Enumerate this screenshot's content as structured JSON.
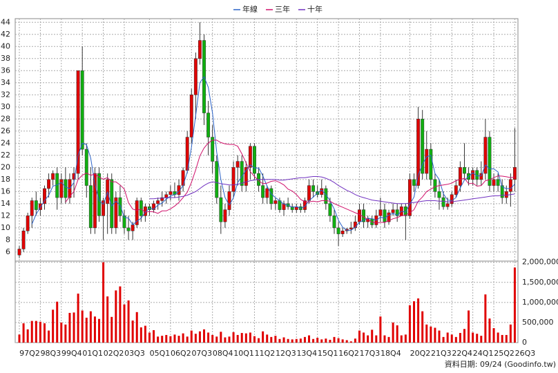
{
  "chart_data": {
    "type": "candlestick",
    "categories": [
      "97Q2",
      null,
      null,
      null,
      null,
      "98Q3",
      null,
      null,
      null,
      null,
      "99Q4",
      null,
      null,
      null,
      null,
      "01Q1",
      null,
      null,
      null,
      null,
      "02Q2",
      null,
      null,
      null,
      null,
      "03Q3",
      null,
      null,
      null,
      null,
      null,
      "05Q1",
      null,
      null,
      null,
      null,
      "06Q2",
      null,
      null,
      null,
      null,
      "07Q3",
      null,
      null,
      null,
      null,
      "08Q4",
      null,
      null,
      null,
      null,
      "10Q1",
      null,
      null,
      null,
      null,
      "11Q2",
      null,
      null,
      null,
      null,
      "12Q3",
      null,
      null,
      null,
      null,
      "13Q4",
      null,
      null,
      null,
      null,
      "15Q1",
      null,
      null,
      null,
      null,
      "16Q2",
      null,
      null,
      null,
      null,
      "17Q3",
      null,
      null,
      null,
      null,
      "18Q4",
      null,
      null,
      null,
      null,
      null,
      null,
      "20Q2",
      null,
      null,
      null,
      null,
      "21Q3",
      null,
      null,
      null,
      null,
      "22Q4",
      null,
      null,
      null,
      null,
      "24Q1",
      null,
      null,
      null,
      null,
      "25Q2",
      null,
      null,
      null,
      null,
      "26Q3"
    ],
    "open": [
      5.5,
      6.5,
      9.5,
      12,
      14.5,
      13,
      14,
      16.5,
      18,
      19,
      15,
      18,
      15,
      18,
      19,
      36,
      23,
      17,
      10,
      19,
      12,
      14,
      18,
      10,
      15,
      12,
      10,
      9.5,
      10.5,
      14.5,
      12,
      13.5,
      13,
      14,
      14.5,
      15,
      15.5,
      16,
      15.5,
      17,
      19.5,
      25,
      32,
      38,
      41,
      29,
      25,
      21,
      15,
      11,
      13,
      16,
      20,
      21,
      17,
      20,
      23.5,
      19,
      17,
      15,
      16.5,
      14,
      14.5,
      13,
      14,
      13.5,
      13,
      13.5,
      13,
      14.5,
      17,
      16,
      15.5,
      16.5,
      14,
      12,
      10,
      9,
      9.5,
      9.8,
      10,
      11,
      13,
      11,
      11.5,
      10.5,
      12,
      13,
      11,
      12.5,
      13,
      12,
      13.5,
      12,
      18,
      17,
      28,
      19,
      23,
      18,
      16,
      15,
      13.5,
      14,
      15.5,
      17,
      20,
      19,
      18,
      19.5,
      18,
      19,
      25,
      17,
      18,
      17,
      15,
      16,
      18
    ],
    "high": [
      7,
      10,
      12.5,
      15,
      16,
      15,
      17,
      19,
      19.5,
      20,
      19,
      20,
      19,
      20,
      36,
      40,
      24,
      20,
      20,
      20,
      15,
      19,
      19,
      16,
      17,
      13,
      12,
      11,
      15,
      15,
      14,
      14,
      14.5,
      15,
      16,
      16,
      17,
      17.5,
      18,
      20,
      26,
      33,
      39,
      44,
      42,
      31,
      27,
      22,
      17,
      14,
      17,
      21,
      22,
      22,
      21,
      24,
      24,
      20,
      19,
      17,
      17,
      15,
      15,
      14.5,
      15,
      14,
      14,
      14,
      15,
      18,
      18,
      17,
      18,
      17,
      15,
      13,
      11,
      10,
      10,
      11,
      12,
      14,
      14,
      12,
      12,
      13,
      15,
      14,
      13,
      14,
      14,
      14,
      14,
      19,
      19,
      30,
      29.5,
      26,
      24,
      19,
      18,
      16,
      15,
      16,
      18,
      21,
      24,
      20,
      20,
      20,
      21,
      28,
      26,
      19,
      19,
      18,
      17,
      19,
      26.5
    ],
    "low": [
      5,
      6,
      9,
      10,
      12,
      12,
      13,
      15,
      17,
      13,
      14,
      14,
      14,
      15,
      18,
      22,
      15,
      9,
      9,
      11,
      8,
      9,
      9,
      9,
      11,
      9,
      8,
      8,
      10,
      11,
      11,
      12,
      12.5,
      13,
      13.5,
      14,
      14.5,
      15,
      14.5,
      16,
      19,
      24,
      28,
      37,
      27,
      22,
      19,
      14,
      9,
      10,
      12,
      15,
      17,
      16,
      16,
      18,
      18,
      16,
      14,
      14,
      13,
      13,
      12.5,
      12,
      13,
      12.5,
      12.5,
      12.5,
      12.5,
      14,
      15,
      15,
      15,
      13,
      11,
      9,
      7,
      8.5,
      9,
      9,
      9.5,
      10.5,
      10,
      10,
      10,
      10,
      11,
      10,
      10.5,
      12,
      11,
      12,
      8,
      11.5,
      16,
      16.5,
      18,
      18,
      17,
      15,
      13,
      13,
      13,
      13.5,
      15,
      16,
      18,
      17,
      17,
      17,
      17,
      18,
      16,
      16,
      16,
      14,
      14,
      13.5,
      16
    ],
    "close": [
      6.5,
      9.5,
      12,
      14.5,
      13,
      14,
      16.5,
      18,
      19,
      15,
      18,
      15,
      18,
      19,
      36,
      23,
      17,
      10,
      19,
      12,
      14.5,
      18,
      10,
      15,
      12,
      10,
      9.5,
      10.5,
      14.5,
      12,
      13.5,
      13,
      14,
      14.5,
      15,
      15.5,
      16,
      15.5,
      17,
      19.5,
      25,
      32,
      38,
      41,
      29,
      25,
      21,
      15,
      11,
      13,
      16,
      20,
      21,
      17,
      20,
      23.5,
      19,
      17,
      15,
      16.5,
      14,
      14.5,
      13,
      14,
      13.5,
      13,
      13.5,
      13,
      14.5,
      17,
      16,
      15.5,
      16.5,
      14,
      12,
      10,
      9,
      9.5,
      9.8,
      10,
      11,
      13,
      11,
      11.5,
      10.5,
      12,
      13,
      11,
      12.5,
      13,
      12,
      13.5,
      12,
      18,
      17,
      28,
      19,
      23,
      18,
      16,
      15,
      13.5,
      14,
      15.5,
      17,
      20,
      19,
      18,
      19.5,
      18,
      19,
      25,
      17,
      18,
      17,
      15,
      16,
      18,
      20
    ],
    "volume": [
      200000,
      480000,
      330000,
      540000,
      540000,
      520000,
      480000,
      300000,
      820000,
      1020000,
      500000,
      450000,
      740000,
      750000,
      1220000,
      800000,
      620000,
      780000,
      650000,
      590000,
      2000000,
      1150000,
      640000,
      1300000,
      1400000,
      950000,
      1050000,
      550000,
      760000,
      380000,
      420000,
      250000,
      310000,
      150000,
      170000,
      190000,
      160000,
      200000,
      170000,
      230000,
      150000,
      300000,
      220000,
      280000,
      330000,
      250000,
      190000,
      150000,
      270000,
      130000,
      150000,
      260000,
      190000,
      240000,
      230000,
      250000,
      160000,
      110000,
      280000,
      200000,
      140000,
      170000,
      90000,
      130000,
      90000,
      80000,
      90000,
      100000,
      140000,
      180000,
      90000,
      120000,
      80000,
      100000,
      70000,
      140000,
      110000,
      80000,
      60000,
      30000,
      100000,
      300000,
      250000,
      180000,
      320000,
      180000,
      650000,
      180000,
      140000,
      500000,
      430000,
      180000,
      200000,
      930000,
      1030000,
      1100000,
      780000,
      450000,
      400000,
      370000,
      300000,
      140000,
      250000,
      200000,
      140000,
      240000,
      340000,
      800000,
      250000,
      220000,
      170000,
      1200000,
      600000,
      360000,
      250000,
      190000,
      190000,
      450000,
      1870000
    ],
    "series": [
      {
        "name": "年線",
        "color": "#2a62c9",
        "values": [
          null,
          null,
          null,
          10.6,
          12.25,
          13.4,
          14.5,
          15.4,
          16.9,
          17.1,
          17.5,
          16.75,
          16.5,
          17.5,
          22,
          24,
          23.75,
          21.5,
          17.25,
          14.5,
          13.9,
          15.9,
          13.6,
          14.4,
          13.75,
          11.75,
          11.6,
          10.5,
          11.1,
          11.6,
          12.6,
          13.25,
          13.1,
          13.75,
          14.1,
          14.75,
          15.25,
          15.5,
          16,
          17,
          19.25,
          23.4,
          28.6,
          34,
          35,
          33.25,
          29,
          22.5,
          18,
          15,
          13.75,
          15,
          17.5,
          18.5,
          19.5,
          20.4,
          19.9,
          19.9,
          18.6,
          16.9,
          15.6,
          15,
          14.5,
          13.9,
          13.75,
          13.4,
          13.5,
          13.25,
          13.5,
          14.5,
          15.1,
          15.75,
          16.25,
          15.5,
          14.5,
          13.1,
          11.25,
          10.1,
          9.6,
          9.6,
          10.1,
          10.95,
          11.25,
          11.6,
          11.5,
          11.25,
          11.75,
          11.6,
          12.1,
          12.4,
          12.1,
          12.75,
          12.6,
          13.9,
          15.1,
          18.75,
          20.5,
          21.75,
          22,
          19,
          18,
          15.6,
          14.6,
          14.5,
          15,
          16.6,
          17.9,
          18.5,
          19.1,
          18.6,
          18.6,
          20.4,
          19.75,
          19.75,
          19.25,
          16.75,
          16.5,
          16.5,
          17.25
        ]
      },
      {
        "name": "三年",
        "color": "#d0106a",
        "values": [
          null,
          null,
          null,
          null,
          null,
          null,
          null,
          null,
          null,
          null,
          null,
          14.25,
          15.2,
          16,
          18,
          18.7,
          19.05,
          18.7,
          18.9,
          18.4,
          18.05,
          18.3,
          17.6,
          17.6,
          17.1,
          16.4,
          14.15,
          13.1,
          12.9,
          13.1,
          12.6,
          12.7,
          12.65,
          12.4,
          12.8,
          12.8,
          13.15,
          13.6,
          14.2,
          15,
          15.9,
          17.55,
          19.6,
          21.9,
          23.2,
          24.05,
          24.5,
          24.5,
          24.1,
          23.9,
          23.8,
          23.8,
          23.5,
          22.25,
          20.75,
          19.3,
          18.5,
          17.8,
          17.3,
          17.4,
          17.7,
          17.8,
          17.5,
          17.1,
          16.4,
          16.1,
          15.5,
          14.7,
          14.3,
          14.3,
          14.4,
          14.3,
          14.5,
          14.5,
          14.4,
          14,
          13.7,
          13.4,
          13.1,
          12.8,
          12.5,
          12.2,
          11.8,
          11.4,
          10.95,
          10.8,
          10.9,
          10.9,
          11.2,
          11.5,
          11.7,
          12,
          12.1,
          12.5,
          13,
          14.4,
          15.1,
          16,
          16.4,
          16.8,
          17,
          17.1,
          17.2,
          17.4,
          17.8,
          18,
          18.2,
          17.3,
          17.4,
          16.9,
          17,
          17.8,
          17.95,
          18.3,
          18.6,
          18.55,
          18.45,
          18.3,
          18.4
        ]
      },
      {
        "name": "十年",
        "color": "#7030c0",
        "values": [
          null,
          null,
          null,
          null,
          null,
          null,
          null,
          null,
          null,
          null,
          null,
          null,
          null,
          null,
          null,
          null,
          null,
          null,
          null,
          null,
          null,
          null,
          null,
          null,
          null,
          null,
          null,
          null,
          null,
          null,
          null,
          14.8,
          14.8,
          14.9,
          14.9,
          15,
          15,
          15,
          15.1,
          15.2,
          15.4,
          15.7,
          16,
          16.5,
          17,
          17.4,
          17.6,
          17.5,
          17.3,
          17.2,
          17.1,
          17.1,
          17.2,
          17.4,
          17.6,
          17.8,
          17.9,
          18,
          18,
          18,
          18,
          18,
          17.9,
          17.9,
          18,
          18.1,
          18.2,
          18.3,
          18.3,
          18.4,
          18.5,
          18.5,
          18.4,
          18.2,
          17.9,
          17.5,
          17,
          16.6,
          16.2,
          15.9,
          15.5,
          15.2,
          15,
          14.8,
          14.6,
          14.5,
          14.4,
          14.3,
          14.2,
          14.1,
          14,
          14,
          14,
          14.1,
          14.2,
          14.3,
          14.4,
          14.5,
          14.5,
          14.5,
          14.4,
          14.4,
          14.3,
          14.3,
          14.4,
          14.5,
          14.6,
          14.7,
          14.8,
          14.9,
          15,
          15.1,
          15.2,
          15.3,
          15.3,
          15.4,
          15.4,
          15.5,
          15.6
        ]
      }
    ],
    "up_color": "#e00000",
    "down_color": "#10b010",
    "volume_color": "#e00000",
    "ylim": [
      4.5,
      44.6
    ],
    "yticks": [
      6,
      8,
      10,
      12,
      14,
      16,
      18,
      20,
      22,
      24,
      26,
      28,
      30,
      32,
      34,
      36,
      38,
      40,
      42,
      44
    ],
    "volume_ylim": [
      0,
      2030000
    ],
    "volume_yticks": [
      0,
      {
        "value": 500000,
        "label": "500,000"
      },
      {
        "value": 1000000,
        "label": "1,000,000"
      },
      {
        "value": 1500000,
        "label": "1,500,000"
      },
      {
        "value": 2000000,
        "label": "2,000,000"
      }
    ],
    "grid": true,
    "footnote": "資料日期: 09/24 (Goodinfo.tw)"
  }
}
